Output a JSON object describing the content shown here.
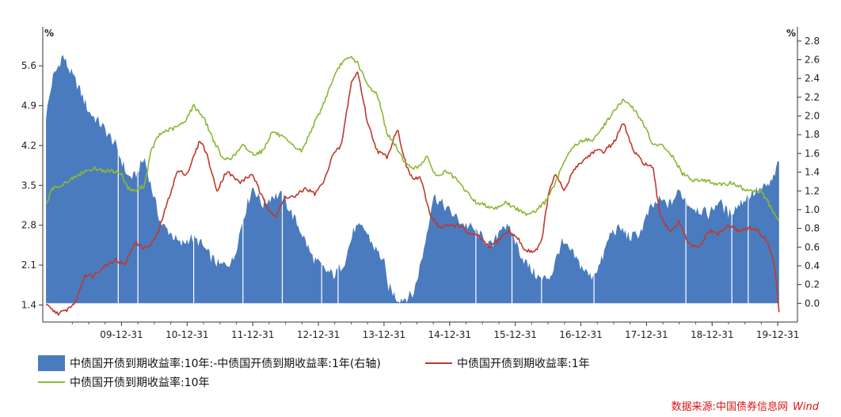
{
  "chart_data": {
    "type": "line",
    "title": "",
    "left_unit": "%",
    "right_unit": "%",
    "x_ticks": [
      "09-12-31",
      "10-12-31",
      "11-12-31",
      "12-12-31",
      "13-12-31",
      "14-12-31",
      "15-12-31",
      "16-12-31",
      "17-12-31",
      "18-12-31",
      "19-12-31"
    ],
    "y_left": {
      "range": [
        1.1,
        6.2
      ],
      "ticks": [
        "1.4",
        "2.1",
        "2.8",
        "3.5",
        "4.2",
        "4.9",
        "5.6"
      ]
    },
    "y_right": {
      "range": [
        -0.2,
        2.9
      ],
      "ticks": [
        "0.0",
        "0.2",
        "0.4",
        "0.6",
        "0.8",
        "1.0",
        "1.2",
        "1.4",
        "1.6",
        "1.8",
        "2.0",
        "2.2",
        "2.4",
        "2.6",
        "2.8"
      ]
    },
    "x_range": [
      2008.8,
      2020.3
    ],
    "series": [
      {
        "name": "中债国开债到期收益率:10年:-中债国开债到期收益率:1年(右轴)",
        "type": "area",
        "axis": "right",
        "color": "#4a7bbf",
        "x": [
          2008.85,
          2008.95,
          2009.05,
          2009.1,
          2009.2,
          2009.35,
          2009.5,
          2009.7,
          2009.9,
          2010.1,
          2010.2,
          2010.35,
          2010.45,
          2010.6,
          2010.75,
          2010.9,
          2011.05,
          2011.2,
          2011.35,
          2011.5,
          2011.7,
          2011.85,
          2012.0,
          2012.15,
          2012.3,
          2012.45,
          2012.6,
          2012.75,
          2012.9,
          2013.1,
          2013.25,
          2013.4,
          2013.55,
          2013.7,
          2013.85,
          2014.0,
          2014.05,
          2014.2,
          2014.3,
          2014.45,
          2014.6,
          2014.75,
          2014.9,
          2015.05,
          2015.2,
          2015.35,
          2015.5,
          2015.65,
          2015.8,
          2015.95,
          2016.1,
          2016.25,
          2016.4,
          2016.55,
          2016.7,
          2016.85,
          2017.0,
          2017.15,
          2017.3,
          2017.45,
          2017.6,
          2017.75,
          2017.9,
          2018.05,
          2018.2,
          2018.35,
          2018.5,
          2018.65,
          2018.8,
          2018.95,
          2019.1,
          2019.25,
          2019.4,
          2019.55,
          2019.7,
          2019.85,
          2019.95,
          2020.02
        ],
        "y": [
          2.0,
          2.4,
          2.55,
          2.65,
          2.5,
          2.3,
          2.05,
          1.9,
          1.7,
          1.35,
          1.35,
          1.55,
          1.25,
          0.85,
          0.75,
          0.62,
          0.7,
          0.65,
          0.5,
          0.4,
          0.45,
          0.9,
          1.25,
          1.05,
          1.15,
          1.15,
          0.95,
          0.75,
          0.5,
          0.35,
          0.3,
          0.45,
          0.8,
          0.8,
          0.6,
          0.45,
          0.2,
          0.05,
          0.05,
          0.1,
          0.55,
          1.15,
          1.05,
          0.95,
          0.85,
          0.8,
          0.7,
          0.6,
          0.85,
          0.75,
          0.5,
          0.35,
          0.25,
          0.3,
          0.65,
          0.55,
          0.4,
          0.28,
          0.42,
          0.75,
          0.8,
          0.7,
          0.75,
          1.0,
          1.1,
          1.05,
          1.2,
          1.05,
          1.0,
          0.95,
          1.1,
          0.95,
          1.05,
          1.15,
          1.2,
          1.25,
          1.35,
          1.55
        ]
      },
      {
        "name": "中债国开债到期收益率:1年",
        "type": "line",
        "axis": "left",
        "color": "#c0392b",
        "x": [
          2008.85,
          2008.95,
          2009.05,
          2009.15,
          2009.3,
          2009.45,
          2009.55,
          2009.7,
          2009.9,
          2010.05,
          2010.2,
          2010.35,
          2010.45,
          2010.55,
          2010.7,
          2010.85,
          2011.0,
          2011.1,
          2011.2,
          2011.3,
          2011.45,
          2011.6,
          2011.8,
          2012.0,
          2012.1,
          2012.2,
          2012.35,
          2012.5,
          2012.65,
          2012.8,
          2012.95,
          2013.1,
          2013.2,
          2013.35,
          2013.5,
          2013.6,
          2013.75,
          2013.9,
          2014.05,
          2014.2,
          2014.35,
          2014.45,
          2014.55,
          2014.7,
          2014.85,
          2015.0,
          2015.15,
          2015.3,
          2015.45,
          2015.6,
          2015.75,
          2015.9,
          2016.05,
          2016.15,
          2016.3,
          2016.4,
          2016.5,
          2016.6,
          2016.75,
          2016.9,
          2017.05,
          2017.2,
          2017.35,
          2017.5,
          2017.65,
          2017.8,
          2017.95,
          2018.1,
          2018.2,
          2018.35,
          2018.5,
          2018.65,
          2018.8,
          2018.95,
          2019.1,
          2019.25,
          2019.4,
          2019.55,
          2019.7,
          2019.85,
          2019.95,
          2020.02
        ],
        "y": [
          1.4,
          1.3,
          1.25,
          1.3,
          1.45,
          1.95,
          1.9,
          2.05,
          2.2,
          2.1,
          2.5,
          2.4,
          2.45,
          2.65,
          3.2,
          3.75,
          3.7,
          4.0,
          4.3,
          4.05,
          3.4,
          3.75,
          3.55,
          3.7,
          3.4,
          3.15,
          2.95,
          3.3,
          3.3,
          3.45,
          3.35,
          3.6,
          4.0,
          4.2,
          5.3,
          5.5,
          4.6,
          4.1,
          4.0,
          4.5,
          3.8,
          3.6,
          3.65,
          3.0,
          2.75,
          2.8,
          2.8,
          2.65,
          2.6,
          2.4,
          2.55,
          2.7,
          2.55,
          2.35,
          2.35,
          2.5,
          3.3,
          3.7,
          3.4,
          3.8,
          3.95,
          4.1,
          4.1,
          4.25,
          4.6,
          4.1,
          3.9,
          3.8,
          3.0,
          2.7,
          2.85,
          2.45,
          2.4,
          2.7,
          2.65,
          2.8,
          2.7,
          2.75,
          2.7,
          2.5,
          2.1,
          1.3
        ]
      },
      {
        "name": "中债国开债到期收益率:10年",
        "type": "line",
        "axis": "left",
        "color": "#8ab834",
        "x": [
          2008.85,
          2008.95,
          2009.05,
          2009.15,
          2009.3,
          2009.45,
          2009.6,
          2009.75,
          2009.9,
          2010.0,
          2010.1,
          2010.2,
          2010.35,
          2010.45,
          2010.55,
          2010.65,
          2010.8,
          2010.95,
          2011.1,
          2011.25,
          2011.4,
          2011.55,
          2011.7,
          2011.85,
          2012.0,
          2012.15,
          2012.3,
          2012.45,
          2012.6,
          2012.75,
          2012.9,
          2013.05,
          2013.2,
          2013.35,
          2013.5,
          2013.6,
          2013.75,
          2013.9,
          2014.05,
          2014.2,
          2014.35,
          2014.5,
          2014.65,
          2014.8,
          2014.95,
          2015.1,
          2015.25,
          2015.4,
          2015.55,
          2015.7,
          2015.85,
          2016.0,
          2016.15,
          2016.3,
          2016.45,
          2016.6,
          2016.75,
          2016.9,
          2017.05,
          2017.2,
          2017.35,
          2017.5,
          2017.65,
          2017.8,
          2017.95,
          2018.1,
          2018.25,
          2018.4,
          2018.55,
          2018.7,
          2018.85,
          2019.0,
          2019.15,
          2019.3,
          2019.45,
          2019.6,
          2019.75,
          2019.9,
          2020.02
        ],
        "y": [
          3.15,
          3.45,
          3.5,
          3.55,
          3.65,
          3.75,
          3.8,
          3.75,
          3.75,
          3.7,
          3.45,
          3.4,
          3.5,
          4.1,
          4.35,
          4.45,
          4.5,
          4.6,
          4.9,
          4.7,
          4.3,
          3.95,
          4.0,
          4.2,
          4.05,
          4.1,
          4.45,
          4.35,
          4.2,
          4.1,
          4.5,
          4.85,
          5.3,
          5.65,
          5.75,
          5.65,
          5.25,
          5.1,
          4.4,
          4.15,
          3.85,
          3.8,
          4.0,
          3.65,
          3.75,
          3.6,
          3.4,
          3.2,
          3.15,
          3.1,
          3.2,
          3.1,
          3.0,
          3.05,
          3.2,
          3.5,
          3.95,
          4.2,
          4.3,
          4.3,
          4.55,
          4.8,
          5.0,
          4.85,
          4.6,
          4.2,
          4.2,
          4.0,
          3.7,
          3.6,
          3.6,
          3.55,
          3.5,
          3.55,
          3.45,
          3.4,
          3.4,
          3.1,
          2.85
        ]
      }
    ],
    "legend": {
      "items": [
        "中债国开债到期收益率:10年:-中债国开债到期收益率:1年(右轴)",
        "中债国开债到期收益率:1年",
        "中债国开债到期收益率:10年"
      ]
    },
    "source": "数据来源:中国债券信息网",
    "source_brand": "Wind"
  }
}
